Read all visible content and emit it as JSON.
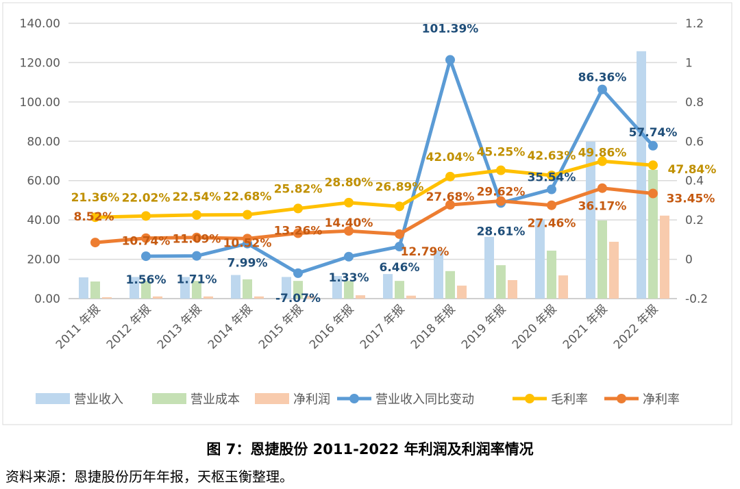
{
  "chart_data": {
    "type": "bar+line",
    "title": "",
    "categories": [
      "2011 年报",
      "2012 年报",
      "2013 年报",
      "2014 年报",
      "2015 年报",
      "2016 年报",
      "2017 年报",
      "2018 年报",
      "2019 年报",
      "2020 年报",
      "2021 年报",
      "2022 年报"
    ],
    "y_left": {
      "lim": [
        0,
        140
      ],
      "ticks": [
        "0.00",
        "20.00",
        "40.00",
        "60.00",
        "80.00",
        "100.00",
        "120.00",
        "140.00"
      ]
    },
    "y_right": {
      "lim": [
        -0.2,
        1.2
      ],
      "ticks": [
        "-0.2",
        "0",
        "0.2",
        "0.4",
        "0.6",
        "0.8",
        "1",
        "1.2"
      ]
    },
    "grid": true,
    "legend_position": "bottom",
    "bar_series": [
      {
        "name": "营业收入",
        "color": "#bdd7ee",
        "values": [
          10.8,
          11.0,
          11.0,
          12.0,
          11.0,
          11.5,
          12.5,
          24.4,
          31.4,
          40.4,
          79.8,
          125.8
        ]
      },
      {
        "name": "营业成本",
        "color": "#c5e0b4",
        "values": [
          8.7,
          9.0,
          9.0,
          9.8,
          9.0,
          9.0,
          9.0,
          14.0,
          17.0,
          24.4,
          39.7,
          65.5
        ]
      },
      {
        "name": "净利润",
        "color": "#f8cbad",
        "values": [
          0.7,
          1.1,
          1.1,
          1.1,
          1.4,
          1.7,
          1.5,
          6.6,
          9.4,
          11.8,
          28.9,
          42.2
        ]
      }
    ],
    "line_series": [
      {
        "name": "营业收入同比变动",
        "color": "#5b9bd5",
        "label_color": "#1f4e79",
        "values": [
          null,
          0.0156,
          0.0171,
          0.0799,
          -0.0707,
          0.0133,
          0.0646,
          1.0139,
          0.2861,
          0.3554,
          0.8636,
          0.5774
        ],
        "labels": [
          "",
          "1.56%",
          "1.71%",
          "7.99%",
          "-7.07%",
          "1.33%",
          "6.46%",
          "101.39%",
          "28.61%",
          "35.54%",
          "86.36%",
          "57.74%"
        ]
      },
      {
        "name": "毛利率",
        "color": "#ffc000",
        "label_color": "#c09000",
        "values": [
          0.2136,
          0.2202,
          0.2254,
          0.2268,
          0.2582,
          0.288,
          0.2689,
          0.4204,
          0.4525,
          0.4263,
          0.4986,
          0.4784
        ],
        "labels": [
          "21.36%",
          "22.02%",
          "22.54%",
          "22.68%",
          "25.82%",
          "28.80%",
          "26.89%",
          "42.04%",
          "45.25%",
          "42.63%",
          "49.86%",
          "47.84%"
        ]
      },
      {
        "name": "净利率",
        "color": "#ed7d31",
        "label_color": "#c55a11",
        "values": [
          0.0852,
          0.1074,
          0.1109,
          0.1052,
          0.1326,
          0.144,
          0.1279,
          0.2768,
          0.2962,
          0.2746,
          0.3617,
          0.3345
        ],
        "labels": [
          "8.52%",
          "10.74%",
          "11.09%",
          "10.52%",
          "13.26%",
          "14.40%",
          "12.79%",
          "27.68%",
          "29.62%",
          "27.46%",
          "36.17%",
          "33.45%"
        ]
      }
    ]
  },
  "caption": "图 7：恩捷股份 2011-2022 年利润及利润率情况",
  "source": "资料来源：恩捷股份历年年报，天枢玉衡整理。"
}
